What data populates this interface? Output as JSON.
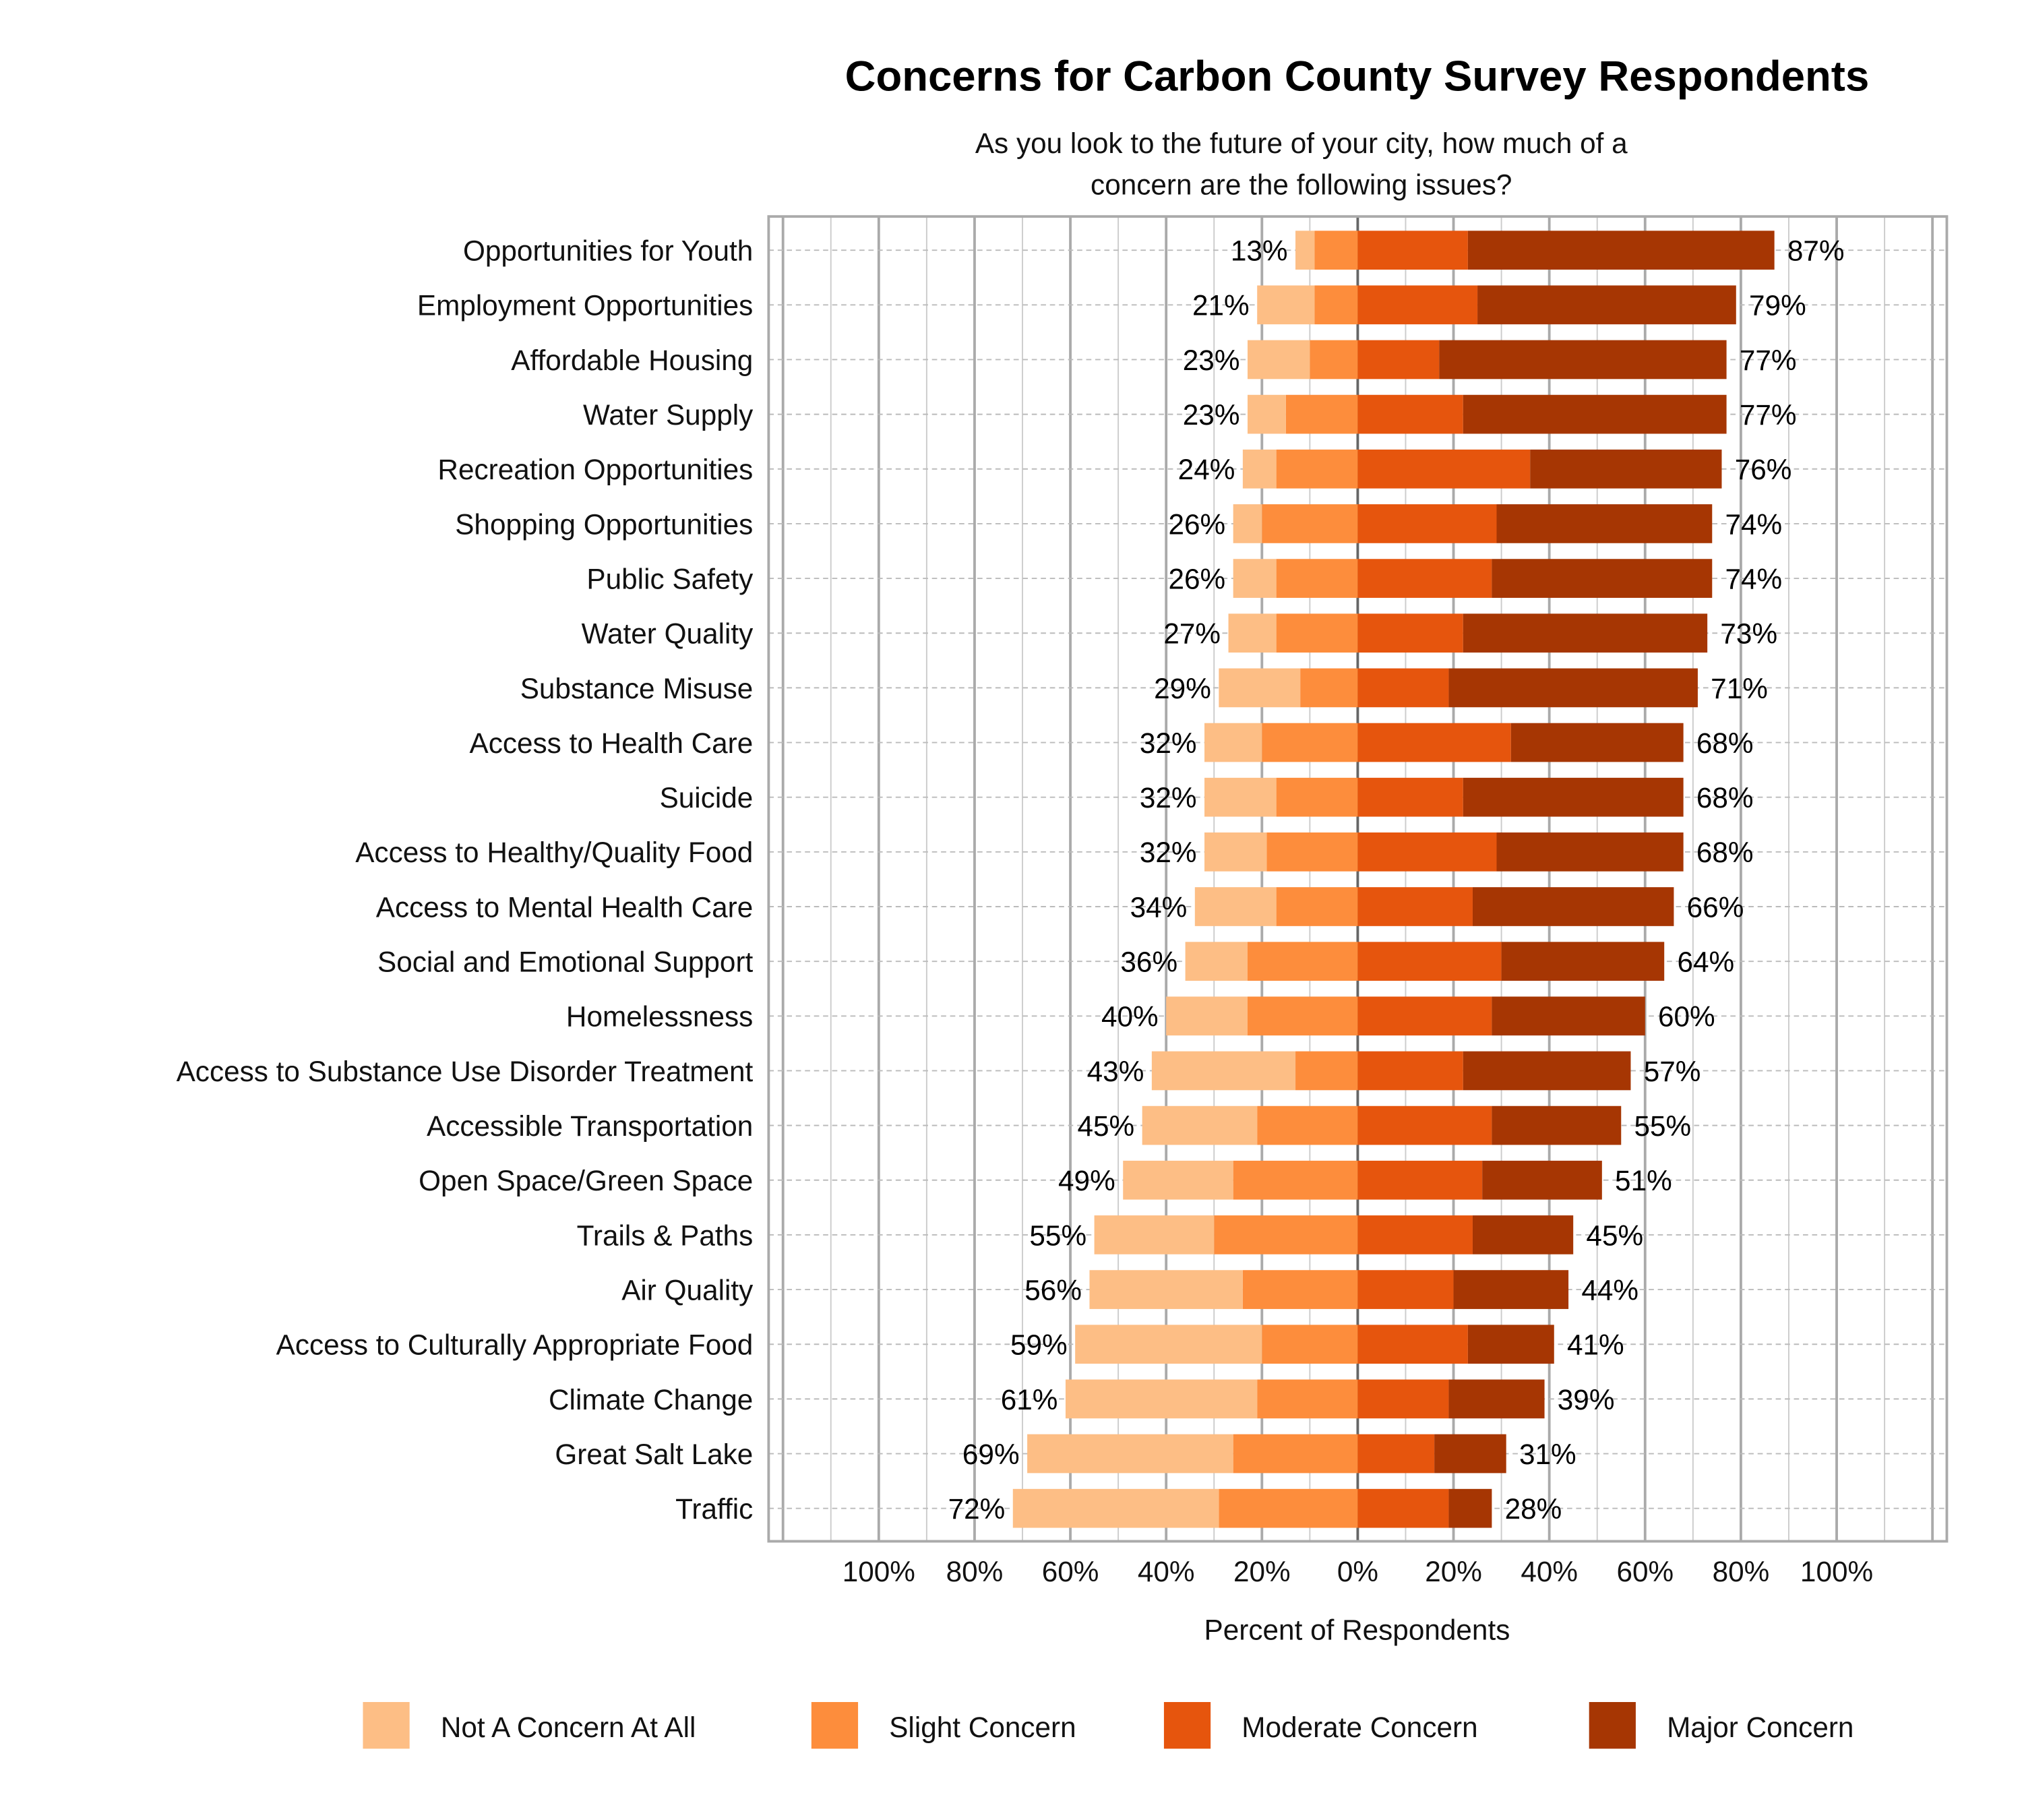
{
  "chart_data": {
    "type": "bar",
    "orientation": "horizontal",
    "stacked": "diverging",
    "title": "Concerns for Carbon County Survey Respondents",
    "subtitle": [
      "As you look to the future of your city, how much of a",
      "concern are the following issues?"
    ],
    "xlabel": "Percent of Respondents",
    "ylabel": "",
    "xlim": [
      -123,
      123
    ],
    "xticks": [
      -100,
      -80,
      -60,
      -40,
      -20,
      0,
      20,
      40,
      60,
      80,
      100
    ],
    "xtick_labels": [
      "100%",
      "80%",
      "60%",
      "40%",
      "20%",
      "0%",
      "20%",
      "40%",
      "60%",
      "80%",
      "100%"
    ],
    "grid": true,
    "legend_position": "bottom",
    "colors": [
      "#FDBE85",
      "#FD8D3C",
      "#E6550D",
      "#A63603"
    ],
    "categories": [
      "Opportunities for Youth",
      "Employment Opportunities",
      "Affordable Housing",
      "Water Supply",
      "Recreation Opportunities",
      "Shopping Opportunities",
      "Public Safety",
      "Water Quality",
      "Substance Misuse",
      "Access to Health Care",
      "Suicide",
      "Access to Healthy/Quality Food",
      "Access to Mental Health Care",
      "Social and Emotional Support",
      "Homelessness",
      "Access to Substance Use Disorder Treatment",
      "Accessible Transportation",
      "Open Space/Green Space",
      "Trails & Paths",
      "Air Quality",
      "Access to Culturally Appropriate Food",
      "Climate Change",
      "Great Salt Lake",
      "Traffic"
    ],
    "series": [
      {
        "name": "Not A Concern At All",
        "side": "negative",
        "values": [
          4,
          12,
          13,
          8,
          7,
          6,
          9,
          10,
          17,
          12,
          15,
          13,
          17,
          13,
          17,
          30,
          24,
          23,
          25,
          32,
          39,
          40,
          43,
          43
        ]
      },
      {
        "name": "Slight Concern",
        "side": "negative",
        "values": [
          9,
          9,
          10,
          15,
          17,
          20,
          17,
          17,
          12,
          20,
          17,
          19,
          17,
          23,
          23,
          13,
          21,
          26,
          30,
          24,
          20,
          21,
          26,
          29
        ]
      },
      {
        "name": "Moderate Concern",
        "side": "positive",
        "values": [
          23,
          25,
          17,
          22,
          36,
          29,
          28,
          22,
          19,
          32,
          22,
          29,
          24,
          30,
          28,
          22,
          28,
          26,
          24,
          20,
          23,
          19,
          16,
          19
        ]
      },
      {
        "name": "Major Concern",
        "side": "positive",
        "values": [
          64,
          54,
          60,
          55,
          40,
          45,
          46,
          51,
          52,
          36,
          46,
          39,
          42,
          34,
          32,
          35,
          27,
          25,
          21,
          24,
          18,
          20,
          15,
          9
        ]
      }
    ],
    "left_labels": [
      "13%",
      "21%",
      "23%",
      "23%",
      "24%",
      "26%",
      "26%",
      "27%",
      "29%",
      "32%",
      "32%",
      "32%",
      "34%",
      "36%",
      "40%",
      "43%",
      "45%",
      "49%",
      "55%",
      "56%",
      "59%",
      "61%",
      "69%",
      "72%"
    ],
    "right_labels": [
      "87%",
      "79%",
      "77%",
      "77%",
      "76%",
      "74%",
      "74%",
      "73%",
      "71%",
      "68%",
      "68%",
      "68%",
      "66%",
      "64%",
      "60%",
      "57%",
      "55%",
      "51%",
      "45%",
      "44%",
      "41%",
      "39%",
      "31%",
      "28%"
    ]
  }
}
